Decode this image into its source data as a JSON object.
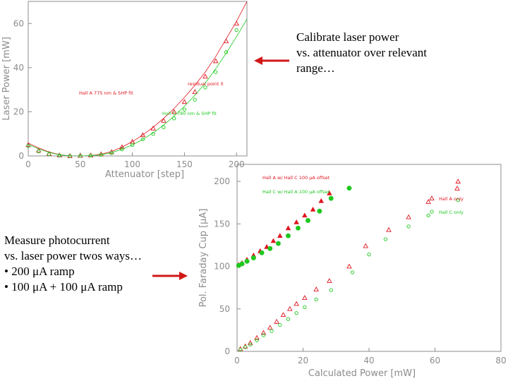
{
  "annotations": {
    "top_note": "Calibrate laser power\nvs. attenuator over relevant\nrange…",
    "bottom_note": "Measure photocurrent\nvs. laser power twos ways…\n• 200 μA ramp\n• 100 μA + 100 μA ramp"
  },
  "colors": {
    "red": "#e0141e",
    "green": "#1ec81e",
    "arrow": "#d01818",
    "axis": "#8c8c8c"
  },
  "chart_data": [
    {
      "type": "scatter",
      "title": "",
      "xlabel": "Attenuator [step]",
      "ylabel": "Laser Power [mW]",
      "xlim": [
        0,
        210
      ],
      "ylim": [
        0,
        70
      ],
      "xticks": [
        "0",
        "50",
        "100",
        "150",
        "200"
      ],
      "yticks": [
        "0",
        "20",
        "40",
        "60"
      ],
      "legend": [
        "Hall A 775 nm & SHP fit",
        "Hall C 780 nm & SHP fit"
      ],
      "annotation": "residual point 0",
      "series": [
        {
          "name": "Hall A 775 nm & SHP fit",
          "color": "#e0141e",
          "marker": "triangle",
          "x": [
            0,
            10,
            20,
            30,
            40,
            50,
            60,
            70,
            80,
            90,
            100,
            110,
            120,
            130,
            140,
            150,
            160,
            170,
            180,
            190,
            200
          ],
          "y": [
            5,
            2.5,
            1,
            0.3,
            0,
            0.1,
            0.3,
            0.8,
            1.8,
            4,
            6.5,
            9.5,
            12.5,
            16,
            20,
            24.5,
            29,
            36,
            43,
            52,
            60
          ],
          "fit_x": [
            0,
            10,
            20,
            30,
            40,
            50,
            60,
            70,
            80,
            90,
            100,
            110,
            120,
            130,
            140,
            150,
            160,
            170,
            180,
            190,
            200,
            210
          ],
          "fit_y": [
            5.8,
            3.6,
            1.8,
            0.6,
            0,
            0,
            0.1,
            0.8,
            2,
            4,
            6.5,
            9.5,
            13,
            17,
            21.5,
            26.5,
            32,
            38,
            45,
            53,
            61,
            70
          ]
        },
        {
          "name": "Hall C 780 nm & SHP fit",
          "color": "#1ec81e",
          "marker": "circle",
          "x": [
            0,
            10,
            20,
            30,
            40,
            50,
            60,
            70,
            80,
            90,
            100,
            110,
            120,
            130,
            140,
            150,
            160,
            170,
            180,
            190,
            200
          ],
          "y": [
            4.5,
            2,
            0.8,
            0.2,
            0,
            0,
            0.2,
            0.5,
            1.3,
            3,
            5,
            7.5,
            10,
            13,
            17,
            21,
            25.5,
            31,
            38,
            47,
            57
          ],
          "fit_x": [
            0,
            10,
            20,
            30,
            40,
            50,
            60,
            70,
            80,
            90,
            100,
            110,
            120,
            130,
            140,
            150,
            160,
            170,
            180,
            190,
            200,
            210
          ],
          "fit_y": [
            5.2,
            3.2,
            1.6,
            0.5,
            0,
            0,
            0.1,
            0.5,
            1.5,
            3,
            5,
            7.5,
            10.5,
            14,
            18,
            22.5,
            27.5,
            33,
            39.5,
            46.5,
            54,
            62
          ]
        }
      ]
    },
    {
      "type": "scatter",
      "title": "",
      "xlabel": "Calculated Power [mW]",
      "ylabel": "Pol. Faraday Cup [μA]",
      "xlim": [
        0,
        80
      ],
      "ylim": [
        0,
        220
      ],
      "xticks": [
        "0",
        "20",
        "40",
        "60",
        "80"
      ],
      "yticks": [
        "0",
        "50",
        "100",
        "150",
        "200"
      ],
      "legend": [
        "Hall A w/ Hall C 100 μA offset",
        "Hall C w/ Hall A 100 μA offset",
        "Hall A only",
        "Hall C only"
      ],
      "series": [
        {
          "name": "Hall A w/ Hall C 100 μA offset",
          "color": "#e0141e",
          "marker": "filled-triangle",
          "x": [
            0.5,
            1.5,
            3,
            5,
            7,
            9,
            11,
            13,
            15.5,
            18,
            20.5,
            23,
            25.5,
            28
          ],
          "y": [
            102,
            104,
            108,
            113,
            118,
            123,
            130,
            136,
            145,
            152,
            160,
            167,
            177,
            186
          ]
        },
        {
          "name": "Hall C w/ Hall A 100 μA offset",
          "color": "#1ec81e",
          "marker": "filled-circle",
          "x": [
            0.5,
            1.5,
            3,
            5,
            7.5,
            10,
            12.5,
            15.5,
            18.5,
            21.5,
            25,
            28.5,
            34
          ],
          "y": [
            101,
            103,
            106,
            110,
            116,
            121,
            127,
            136,
            145,
            154,
            165,
            180,
            192
          ]
        },
        {
          "name": "Hall A only",
          "color": "#e0141e",
          "marker": "triangle",
          "x": [
            1,
            2.5,
            4,
            6,
            8,
            10,
            12,
            14,
            16,
            18,
            20.5,
            24,
            28,
            34,
            39,
            46,
            52,
            58,
            67
          ],
          "y": [
            3,
            6,
            10,
            16,
            22,
            28,
            35,
            43,
            50,
            56,
            63,
            73,
            83,
            100,
            124,
            143,
            158,
            176,
            200
          ]
        },
        {
          "name": "Hall C only",
          "color": "#1ec81e",
          "marker": "circle",
          "x": [
            1,
            2.5,
            4,
            6,
            8,
            10.5,
            13,
            15.5,
            18,
            20.5,
            24,
            28.5,
            35,
            40,
            45,
            52,
            58,
            67
          ],
          "y": [
            2,
            5,
            8,
            13,
            19,
            24,
            31,
            38,
            45,
            52,
            61,
            72,
            93,
            114,
            132,
            147,
            160,
            178
          ]
        }
      ]
    }
  ]
}
